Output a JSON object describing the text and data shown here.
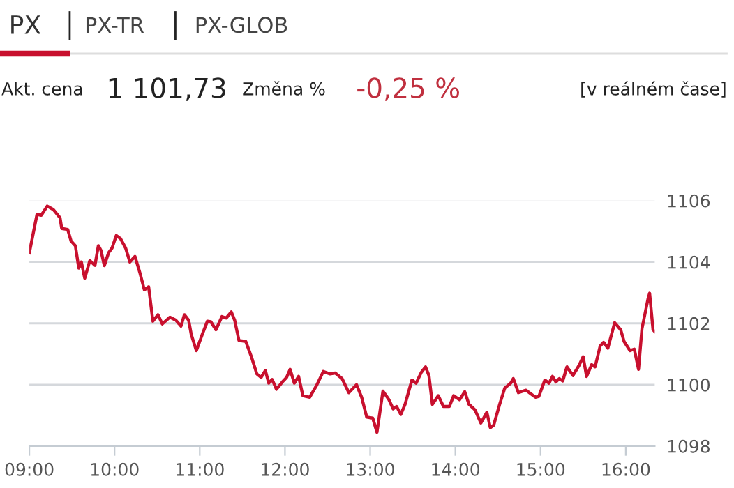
{
  "chart_data": {
    "type": "line",
    "annotations": [
      "PX",
      "PX-TR",
      "PX-GLOB",
      "Akt. cena",
      "1 101,73",
      "Změna %",
      "-0,25 %",
      "[v reálném čase]"
    ],
    "x": [
      9.0,
      9.09,
      9.14,
      9.21,
      9.28,
      9.36,
      9.38,
      9.45,
      9.49,
      9.54,
      9.58,
      9.61,
      9.65,
      9.71,
      9.77,
      9.81,
      9.84,
      9.88,
      9.93,
      9.97,
      10.02,
      10.07,
      10.13,
      10.18,
      10.24,
      10.3,
      10.35,
      10.4,
      10.45,
      10.51,
      10.56,
      10.65,
      10.72,
      10.78,
      10.82,
      10.87,
      10.9,
      10.96,
      11.03,
      11.09,
      11.13,
      11.19,
      11.26,
      11.31,
      11.37,
      11.41,
      11.46,
      11.54,
      11.61,
      11.67,
      11.72,
      11.77,
      11.81,
      11.85,
      11.9,
      11.97,
      12.02,
      12.06,
      12.11,
      12.16,
      12.21,
      12.29,
      12.37,
      12.45,
      12.53,
      12.59,
      12.67,
      12.75,
      12.84,
      12.9,
      12.96,
      13.03,
      13.08,
      13.15,
      13.22,
      13.27,
      13.31,
      13.36,
      13.41,
      13.49,
      13.54,
      13.6,
      13.65,
      13.69,
      13.73,
      13.8,
      13.86,
      13.93,
      13.98,
      14.05,
      14.11,
      14.16,
      14.23,
      14.3,
      14.37,
      14.41,
      14.45,
      14.52,
      14.58,
      14.65,
      14.68,
      14.74,
      14.83,
      14.94,
      14.98,
      15.05,
      15.1,
      15.14,
      15.18,
      15.22,
      15.26,
      15.31,
      15.38,
      15.45,
      15.5,
      15.54,
      15.6,
      15.64,
      15.7,
      15.74,
      15.79,
      15.87,
      15.94,
      15.98,
      16.05,
      16.1,
      16.15,
      16.19,
      16.26,
      16.28,
      16.32,
      16.34
    ],
    "series": [
      {
        "color": "#c8102e",
        "values": [
          1104.3,
          1105.55,
          1105.52,
          1105.82,
          1105.71,
          1105.44,
          1105.09,
          1105.06,
          1104.68,
          1104.53,
          1103.8,
          1104.0,
          1103.47,
          1104.04,
          1103.89,
          1104.53,
          1104.38,
          1103.88,
          1104.3,
          1104.45,
          1104.86,
          1104.76,
          1104.45,
          1104.0,
          1104.18,
          1103.62,
          1103.09,
          1103.19,
          1102.07,
          1102.28,
          1101.98,
          1102.2,
          1102.1,
          1101.91,
          1102.28,
          1102.1,
          1101.64,
          1101.11,
          1101.64,
          1102.07,
          1102.05,
          1101.79,
          1102.22,
          1102.17,
          1102.37,
          1102.1,
          1101.44,
          1101.41,
          1100.88,
          1100.35,
          1100.24,
          1100.46,
          1100.05,
          1100.17,
          1099.85,
          1100.09,
          1100.24,
          1100.5,
          1100.05,
          1100.27,
          1099.64,
          1099.59,
          1099.97,
          1100.43,
          1100.35,
          1100.38,
          1100.2,
          1099.74,
          1100.0,
          1099.59,
          1098.94,
          1098.91,
          1098.45,
          1099.79,
          1099.51,
          1099.21,
          1099.29,
          1099.03,
          1099.36,
          1100.15,
          1100.05,
          1100.4,
          1100.58,
          1100.3,
          1099.36,
          1099.64,
          1099.29,
          1099.29,
          1099.64,
          1099.51,
          1099.77,
          1099.36,
          1099.18,
          1098.75,
          1099.1,
          1098.6,
          1098.68,
          1099.36,
          1099.89,
          1100.05,
          1100.2,
          1099.74,
          1099.82,
          1099.59,
          1099.62,
          1100.15,
          1100.05,
          1100.27,
          1100.09,
          1100.2,
          1100.12,
          1100.58,
          1100.3,
          1100.62,
          1100.91,
          1100.27,
          1100.65,
          1100.58,
          1101.26,
          1101.38,
          1101.19,
          1102.02,
          1101.79,
          1101.41,
          1101.11,
          1101.16,
          1100.5,
          1101.82,
          1102.78,
          1102.98,
          1101.79,
          1101.73
        ]
      }
    ],
    "xlim": [
      9,
      16.34
    ],
    "xticks": [
      {
        "value": 9,
        "label": "09:00"
      },
      {
        "value": 10,
        "label": "10:00"
      },
      {
        "value": 11,
        "label": "11:00"
      },
      {
        "value": 12,
        "label": "12:00"
      },
      {
        "value": 13,
        "label": "13:00"
      },
      {
        "value": 14,
        "label": "14:00"
      },
      {
        "value": 15,
        "label": "15:00"
      },
      {
        "value": 16,
        "label": "16:00"
      }
    ],
    "ylim": [
      1098,
      1106
    ],
    "yticks": [
      1098,
      1100,
      1102,
      1104,
      1106
    ],
    "grid": "y",
    "marker": "none",
    "line_style": "solid",
    "legend": false
  }
}
